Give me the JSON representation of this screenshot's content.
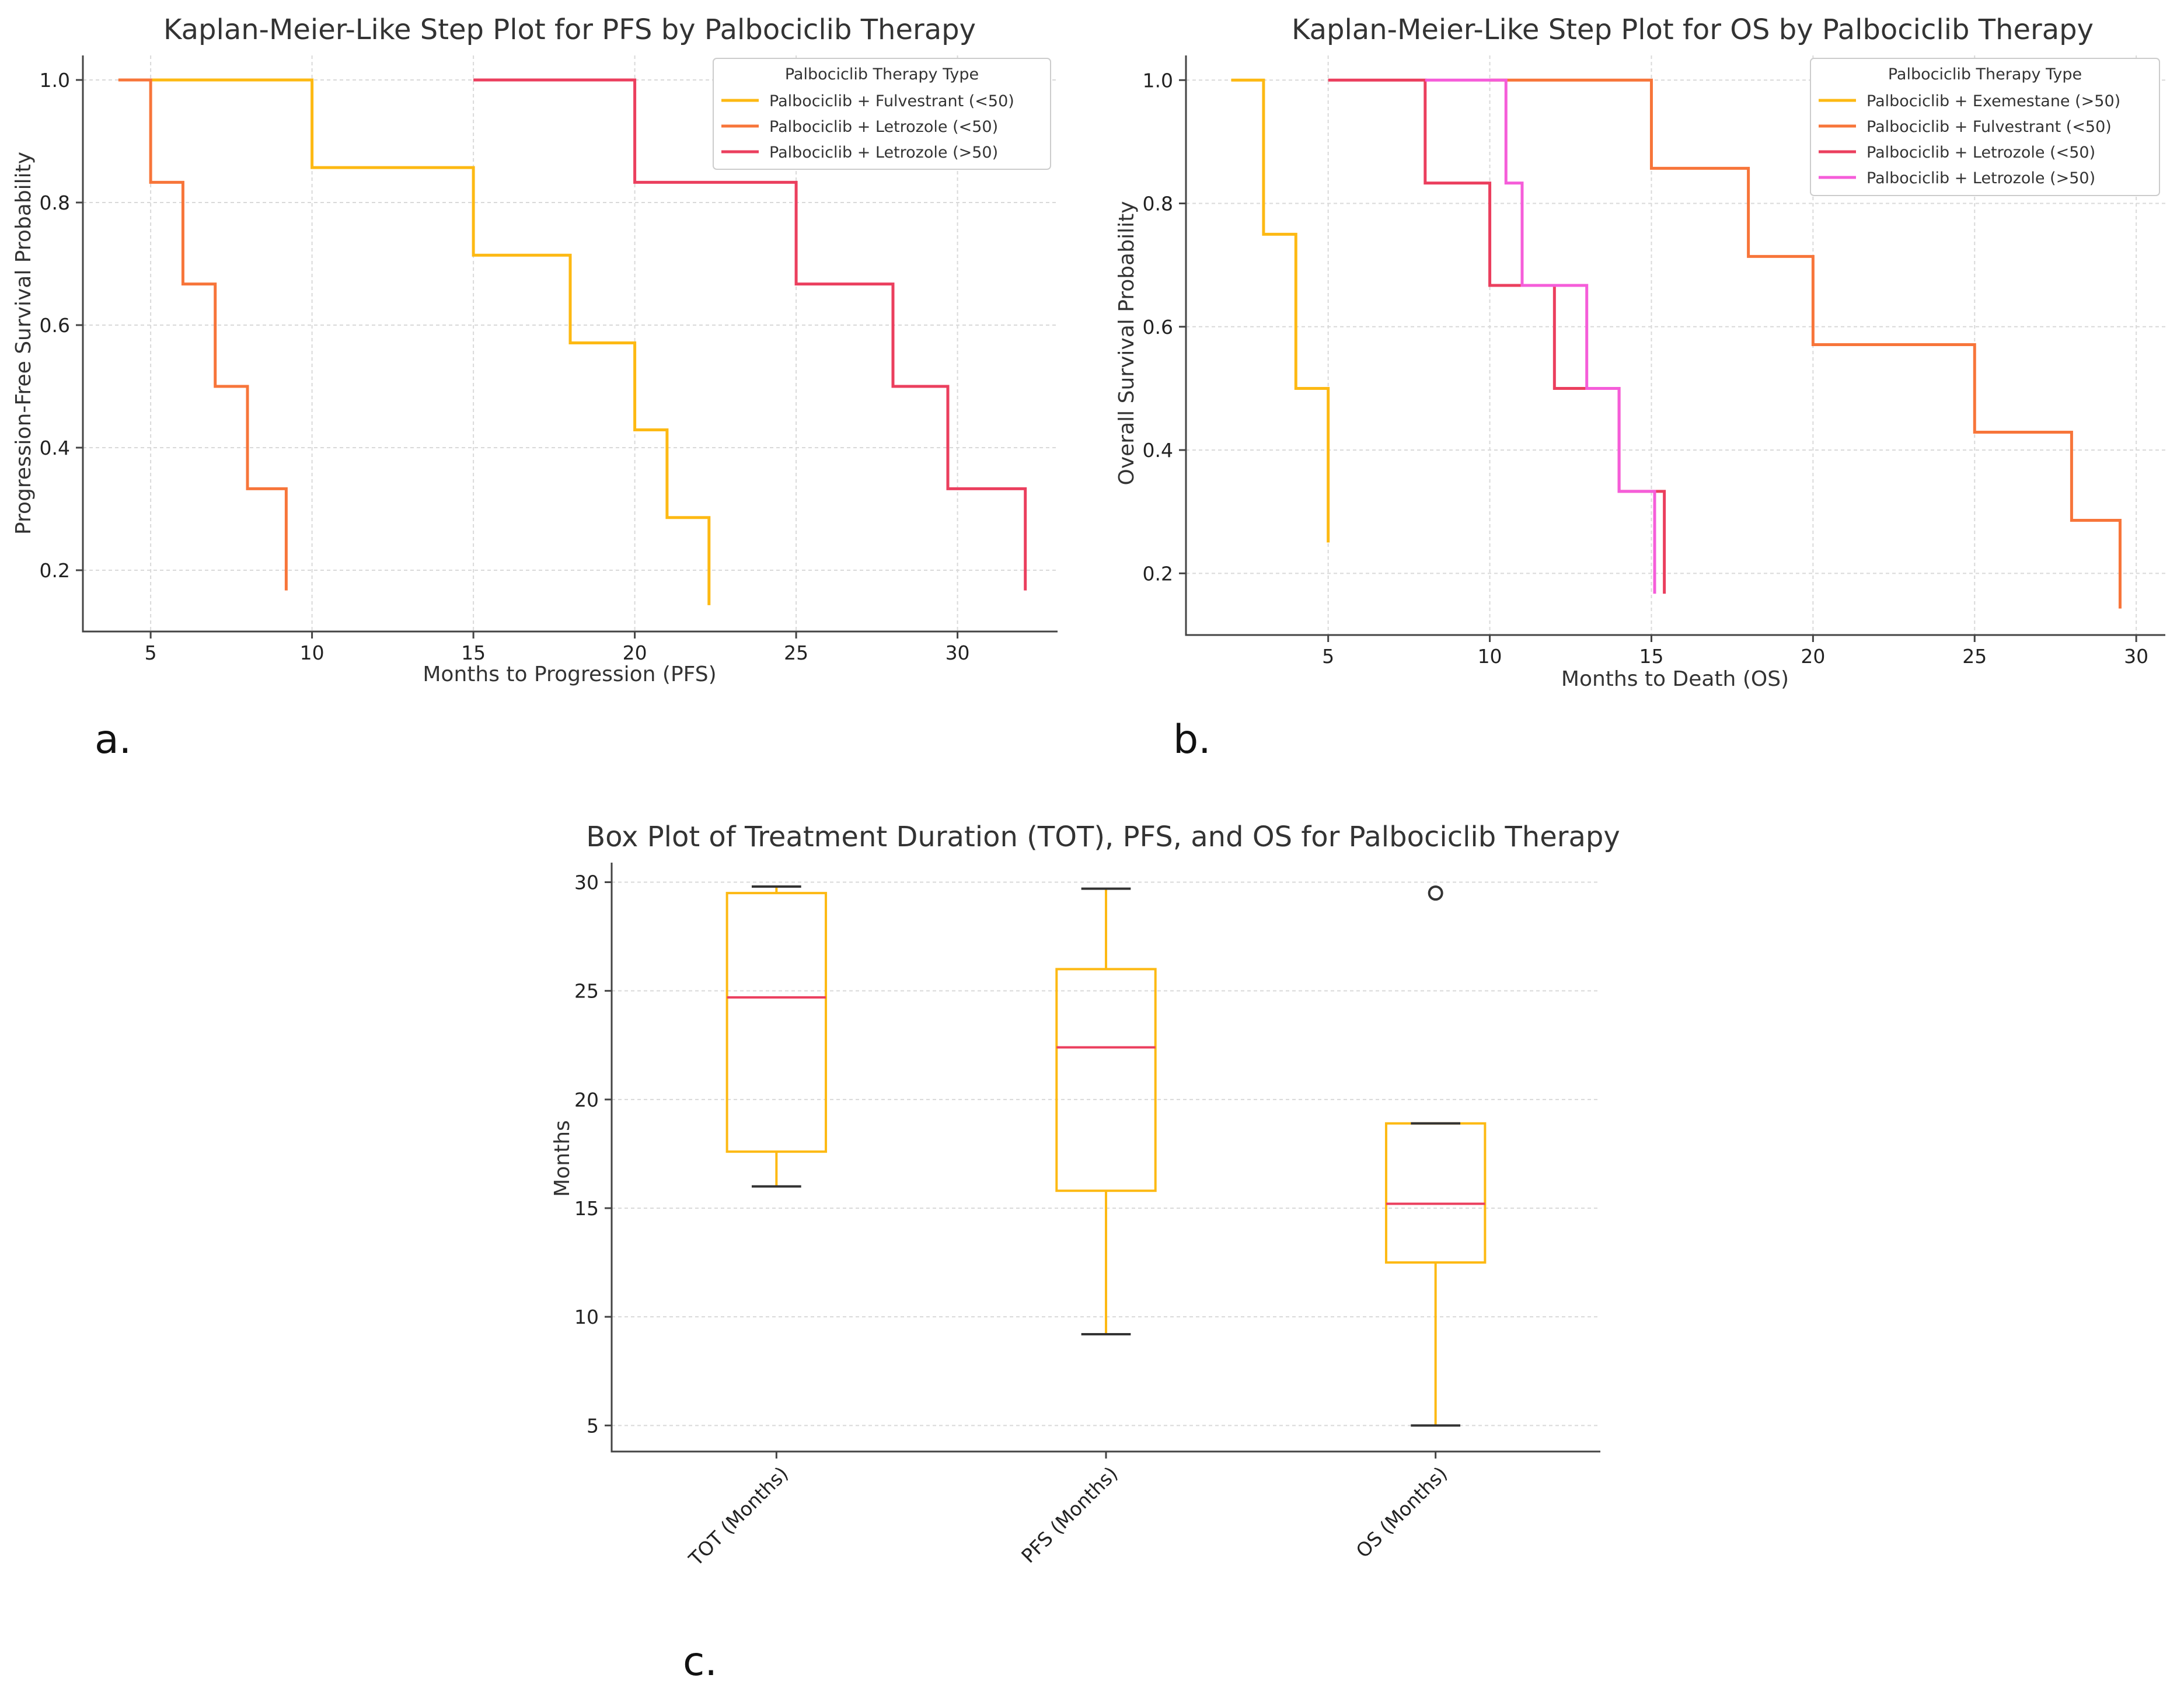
{
  "colors": {
    "yellow": "#FDB913",
    "orange": "#F7753A",
    "red": "#EB3F5E",
    "pink": "#F55DD9",
    "median": "#EB3F5E",
    "box": "#FDB913",
    "whisker_cap": "#333333"
  },
  "chart_data": [
    {
      "panel_label": "a.",
      "type": "line",
      "style": "step",
      "title": "Kaplan-Meier-Like Step Plot for PFS by Palbociclib Therapy",
      "xlabel": "Months to Progression (PFS)",
      "ylabel": "Progression-Free Survival Probability",
      "xlim": [
        2.9,
        33.1
      ],
      "ylim": [
        0.1,
        1.04
      ],
      "xticks": [
        5,
        10,
        15,
        20,
        25,
        30
      ],
      "yticks": [
        0.2,
        0.4,
        0.6,
        0.8,
        1.0
      ],
      "ytick_labels": [
        "0.2",
        "0.4",
        "0.6",
        "0.8",
        "1.0"
      ],
      "grid": true,
      "legend": {
        "title": "Palbociclib Therapy Type",
        "position": "upper right",
        "entries": [
          "Palbociclib + Fulvestrant (<50)",
          "Palbociclib + Letrozole (<50)",
          "Palbociclib + Letrozole (>50)"
        ]
      },
      "series": [
        {
          "name": "Palbociclib + Fulvestrant (<50)",
          "color_key": "yellow",
          "x": [
            5,
            10,
            15,
            18,
            20,
            21,
            22.3
          ],
          "y": [
            1.0,
            0.857,
            0.714,
            0.571,
            0.429,
            0.286,
            0.143
          ]
        },
        {
          "name": "Palbociclib + Letrozole (<50)",
          "color_key": "orange",
          "x": [
            4,
            5,
            6,
            7,
            8,
            9.2
          ],
          "y": [
            1.0,
            0.833,
            0.667,
            0.5,
            0.333,
            0.167
          ]
        },
        {
          "name": "Palbociclib + Letrozole (>50)",
          "color_key": "red",
          "x": [
            15,
            20,
            25,
            28,
            29.7,
            32.1
          ],
          "y": [
            1.0,
            0.833,
            0.667,
            0.5,
            0.333,
            0.167
          ]
        }
      ]
    },
    {
      "panel_label": "b.",
      "type": "line",
      "style": "step",
      "title": "Kaplan-Meier-Like Step Plot for OS by Palbociclib Therapy",
      "xlabel": "Months to Death (OS)",
      "ylabel": "Overall Survival Probability",
      "xlim": [
        0.6,
        30.9
      ],
      "ylim": [
        0.1,
        1.04
      ],
      "xticks": [
        5,
        10,
        15,
        20,
        25,
        30
      ],
      "yticks": [
        0.2,
        0.4,
        0.6,
        0.8,
        1.0
      ],
      "ytick_labels": [
        "0.2",
        "0.4",
        "0.6",
        "0.8",
        "1.0"
      ],
      "grid": true,
      "legend": {
        "title": "Palbociclib Therapy Type",
        "position": "upper right",
        "entries": [
          "Palbociclib + Exemestane (>50)",
          "Palbociclib + Fulvestrant (<50)",
          "Palbociclib + Letrozole (<50)",
          "Palbociclib + Letrozole (>50)"
        ]
      },
      "series": [
        {
          "name": "Palbociclib + Exemestane (>50)",
          "color_key": "yellow",
          "x": [
            2,
            3,
            4,
            5
          ],
          "y": [
            1.0,
            0.75,
            0.5,
            0.25
          ]
        },
        {
          "name": "Palbociclib + Fulvestrant (<50)",
          "color_key": "orange",
          "x": [
            10,
            15,
            18,
            20,
            25,
            28,
            29.5
          ],
          "y": [
            1.0,
            0.857,
            0.714,
            0.571,
            0.429,
            0.286,
            0.143
          ]
        },
        {
          "name": "Palbociclib + Letrozole (<50)",
          "color_key": "red",
          "x": [
            5,
            8,
            10,
            12,
            14,
            15.4
          ],
          "y": [
            1.0,
            0.833,
            0.667,
            0.5,
            0.333,
            0.167
          ]
        },
        {
          "name": "Palbociclib + Letrozole (>50)",
          "color_key": "pink",
          "x": [
            8,
            10.5,
            11,
            13,
            14,
            15.1
          ],
          "y": [
            1.0,
            0.833,
            0.667,
            0.5,
            0.333,
            0.167
          ]
        }
      ]
    },
    {
      "panel_label": "c.",
      "type": "box",
      "title": "Box Plot of Treatment Duration (TOT), PFS, and OS for Palbociclib Therapy",
      "ylabel": "Months",
      "ylim": [
        3.8,
        30.9
      ],
      "yticks": [
        5,
        10,
        15,
        20,
        25,
        30
      ],
      "grid": true,
      "categories": [
        "TOT (Months)",
        "PFS (Months)",
        "OS (Months)"
      ],
      "boxes": [
        {
          "category": "TOT (Months)",
          "whisker_low": 16,
          "q1": 17.6,
          "median": 24.7,
          "q3": 29.5,
          "whisker_high": 29.8,
          "outliers": []
        },
        {
          "category": "PFS (Months)",
          "whisker_low": 9.2,
          "q1": 15.8,
          "median": 22.4,
          "q3": 26,
          "whisker_high": 29.7,
          "outliers": []
        },
        {
          "category": "OS (Months)",
          "whisker_low": 5,
          "q1": 12.5,
          "median": 15.2,
          "q3": 18.9,
          "whisker_high": 18.9,
          "outliers": [
            29.5
          ]
        }
      ]
    }
  ]
}
